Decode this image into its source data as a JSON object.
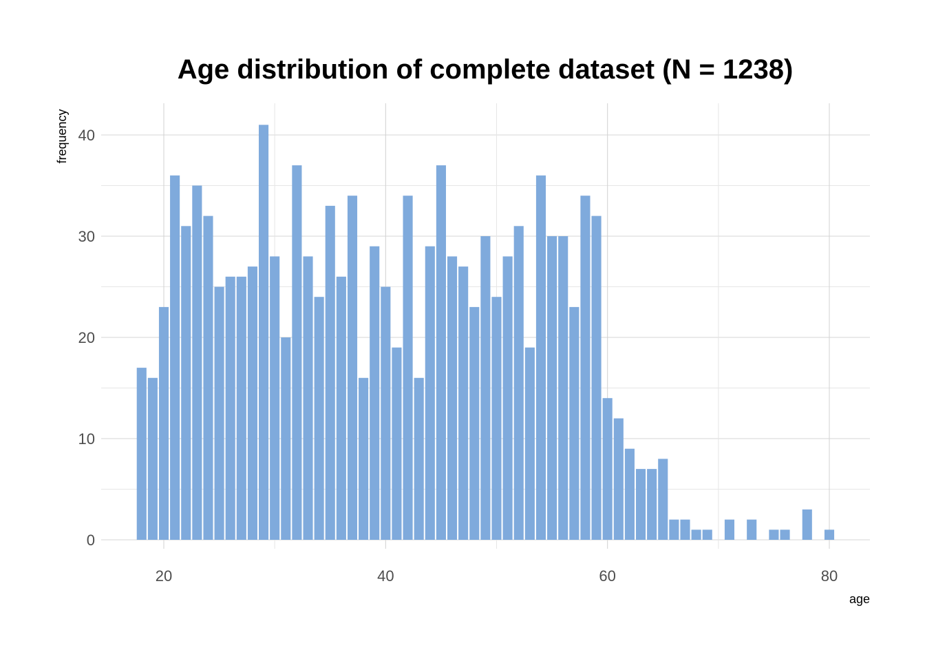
{
  "chart_data": {
    "type": "bar",
    "title": "Age distribution of complete dataset (N = 1238)",
    "xlabel": "age",
    "ylabel": "frequency",
    "xlim": [
      15,
      84
    ],
    "ylim": [
      0,
      43
    ],
    "x_ticks": [
      20,
      40,
      60,
      80
    ],
    "y_ticks": [
      0,
      10,
      20,
      30,
      40
    ],
    "grid": true,
    "bar_color": "#7faadc",
    "x": [
      18,
      19,
      20,
      21,
      22,
      23,
      24,
      25,
      26,
      27,
      28,
      29,
      30,
      31,
      32,
      33,
      34,
      35,
      36,
      37,
      38,
      39,
      40,
      41,
      42,
      43,
      44,
      45,
      46,
      47,
      48,
      49,
      50,
      51,
      52,
      53,
      54,
      55,
      56,
      57,
      58,
      59,
      60,
      61,
      62,
      63,
      64,
      65,
      66,
      67,
      68,
      69,
      70,
      71,
      72,
      73,
      74,
      75,
      76,
      77,
      78,
      79,
      80,
      81
    ],
    "values": [
      17,
      16,
      23,
      36,
      31,
      35,
      32,
      25,
      26,
      26,
      27,
      41,
      28,
      20,
      37,
      28,
      24,
      33,
      26,
      34,
      16,
      29,
      25,
      19,
      34,
      16,
      29,
      37,
      28,
      27,
      23,
      30,
      24,
      28,
      31,
      19,
      36,
      30,
      30,
      23,
      34,
      32,
      14,
      12,
      9,
      7,
      7,
      8,
      2,
      2,
      1,
      1,
      0,
      2,
      0,
      2,
      0,
      1,
      1,
      0,
      3,
      0,
      1,
      0
    ]
  }
}
